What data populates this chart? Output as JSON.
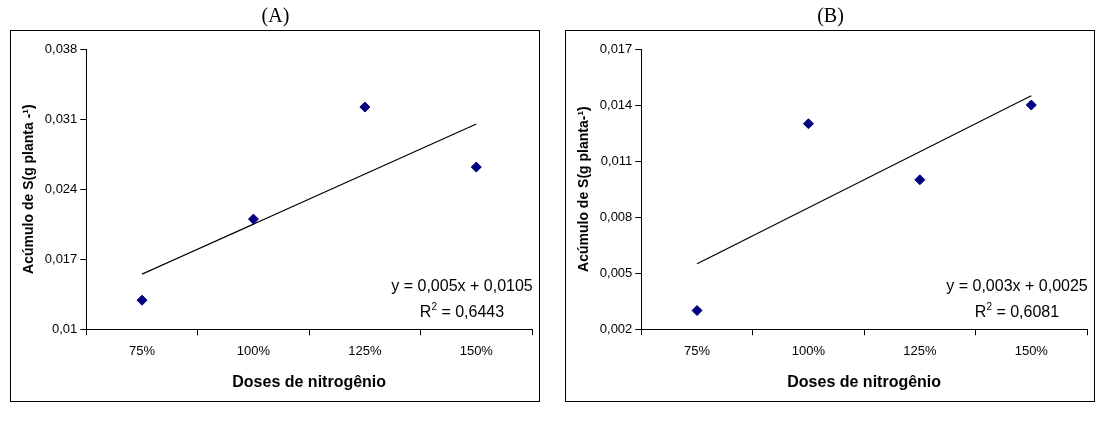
{
  "chart_data": [
    {
      "type": "scatter",
      "title": "(A)",
      "xlabel": "Doses de nitrogênio",
      "ylabel": "Acúmulo de S(g planta -¹)",
      "categories": [
        "75%",
        "100%",
        "125%",
        "150%"
      ],
      "grid": false,
      "series": [
        {
          "color": "#000080",
          "marker": "diamond",
          "values": [
            0.0129,
            0.021,
            0.0322,
            0.0262
          ]
        },
        {
          "type": "line",
          "color": "#000000",
          "marker": "none",
          "x": [
            "75%",
            "150%"
          ],
          "values": [
            0.0155,
            0.0305
          ]
        }
      ],
      "ylim": [
        0.01,
        0.038
      ],
      "yticks": [
        {
          "value": 0.01,
          "label": "0,01"
        },
        {
          "value": 0.017,
          "label": "0,017"
        },
        {
          "value": 0.024,
          "label": "0,024"
        },
        {
          "value": 0.031,
          "label": "0,031"
        },
        {
          "value": 0.038,
          "label": "0,038"
        }
      ],
      "annotations": [
        "y = 0,005x + 0,0105",
        "R$^{2}$ = 0,6443"
      ]
    },
    {
      "type": "scatter",
      "title": "(B)",
      "xlabel": "Doses de nitrogênio",
      "ylabel": "Acúmulo de S(g planta-¹)",
      "categories": [
        "75%",
        "100%",
        "125%",
        "150%"
      ],
      "grid": false,
      "series": [
        {
          "color": "#000080",
          "marker": "diamond",
          "values": [
            0.003,
            0.013,
            0.01,
            0.014
          ]
        },
        {
          "type": "line",
          "color": "#000000",
          "marker": "none",
          "x": [
            "75%",
            "150%"
          ],
          "values": [
            0.0055,
            0.0145
          ]
        }
      ],
      "ylim": [
        0.002,
        0.017
      ],
      "yticks": [
        {
          "value": 0.002,
          "label": "0,002"
        },
        {
          "value": 0.005,
          "label": "0,005"
        },
        {
          "value": 0.008,
          "label": "0,008"
        },
        {
          "value": 0.011,
          "label": "0,011"
        },
        {
          "value": 0.014,
          "label": "0,014"
        },
        {
          "value": 0.017,
          "label": "0,017"
        }
      ],
      "annotations": [
        "y = 0,003x + 0,0025",
        "R$^{2}$ = 0,6081"
      ]
    }
  ]
}
